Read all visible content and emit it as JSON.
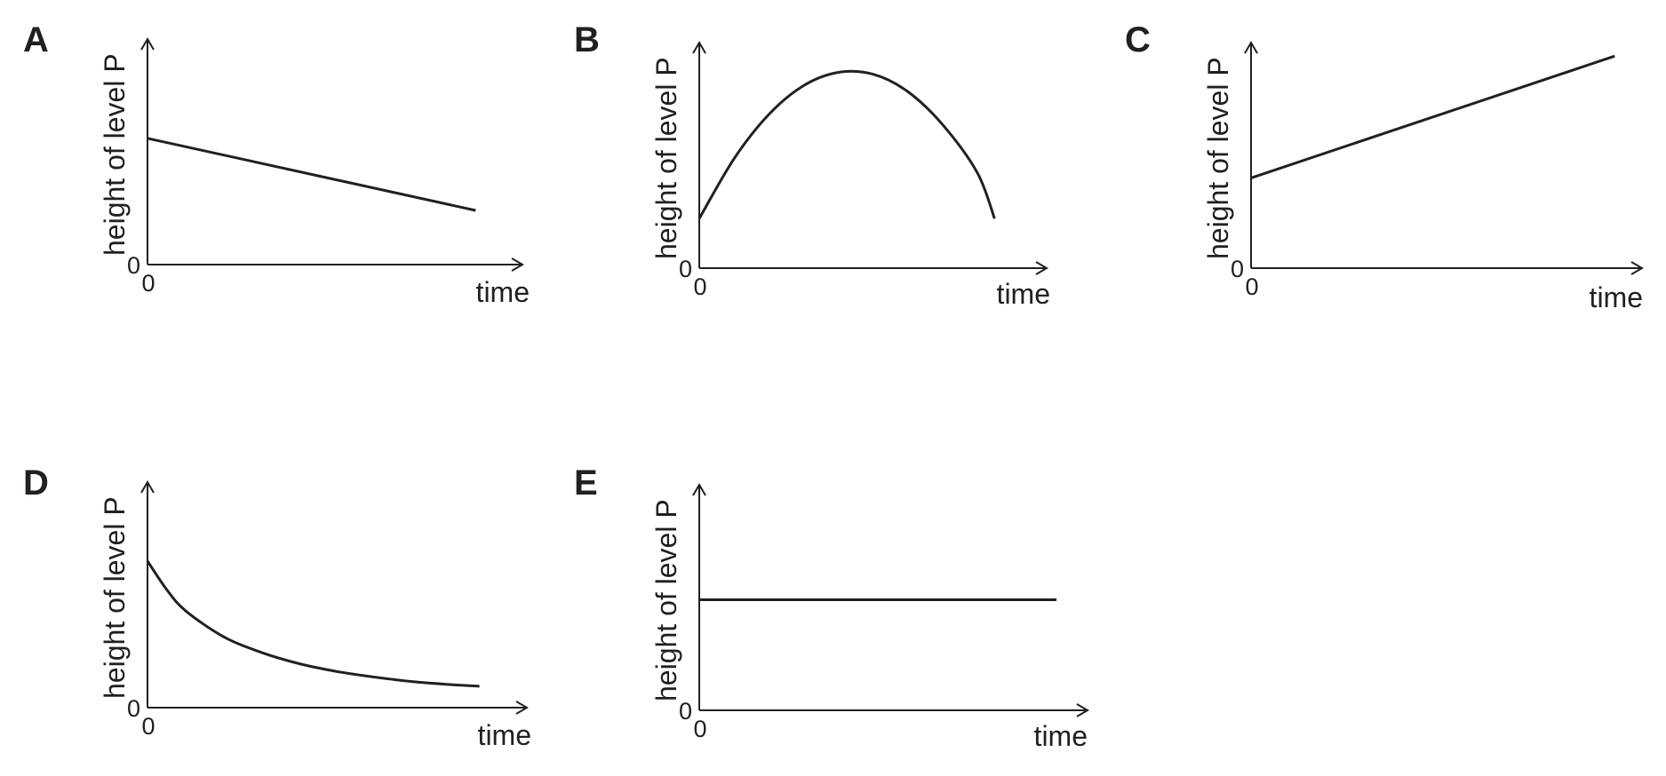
{
  "chart_data": [
    {
      "type": "line",
      "panel_label": "A",
      "xlabel": "time",
      "ylabel": "height of level P",
      "x_tick_label": "0",
      "y_tick_label": "0",
      "grid": false,
      "xlim": [
        0,
        10
      ],
      "ylim": [
        0,
        10
      ],
      "series": [
        {
          "x": [
            0,
            8.75
          ],
          "y": [
            5.6,
            2.4
          ]
        }
      ]
    },
    {
      "type": "line",
      "panel_label": "B",
      "xlabel": "time",
      "ylabel": "height of level P",
      "x_tick_label": "0",
      "y_tick_label": "0",
      "grid": false,
      "xlim": [
        0,
        10
      ],
      "ylim": [
        0,
        10
      ],
      "series": [
        {
          "x": [
            0,
            1,
            2,
            3,
            4,
            5,
            6,
            7,
            8,
            8.5
          ],
          "y": [
            2.2,
            4.85,
            6.81,
            8.09,
            8.68,
            8.6,
            7.83,
            6.37,
            4.24,
            2.2
          ]
        }
      ]
    },
    {
      "type": "line",
      "panel_label": "C",
      "xlabel": "time",
      "ylabel": "height of level P",
      "x_tick_label": "0",
      "y_tick_label": "0",
      "grid": false,
      "xlim": [
        0,
        10
      ],
      "ylim": [
        0,
        10
      ],
      "series": [
        {
          "x": [
            0,
            9.3
          ],
          "y": [
            4.0,
            9.4
          ]
        }
      ]
    },
    {
      "type": "line",
      "panel_label": "D",
      "xlabel": "time",
      "ylabel": "height of level P",
      "x_tick_label": "0",
      "y_tick_label": "0",
      "grid": false,
      "xlim": [
        0,
        10
      ],
      "ylim": [
        0,
        10
      ],
      "series": [
        {
          "x": [
            0,
            0.5,
            1,
            2,
            3,
            4,
            5,
            6,
            7,
            8,
            8.75
          ],
          "y": [
            6.5,
            5.25,
            4.3,
            3.15,
            2.45,
            1.95,
            1.6,
            1.35,
            1.15,
            1.02,
            0.95
          ]
        }
      ]
    },
    {
      "type": "line",
      "panel_label": "E",
      "xlabel": "time",
      "ylabel": "height of level P",
      "x_tick_label": "0",
      "y_tick_label": "0",
      "grid": false,
      "xlim": [
        0,
        10
      ],
      "ylim": [
        0,
        10
      ],
      "series": [
        {
          "x": [
            0,
            9.2
          ],
          "y": [
            4.9,
            4.9
          ]
        }
      ]
    }
  ]
}
